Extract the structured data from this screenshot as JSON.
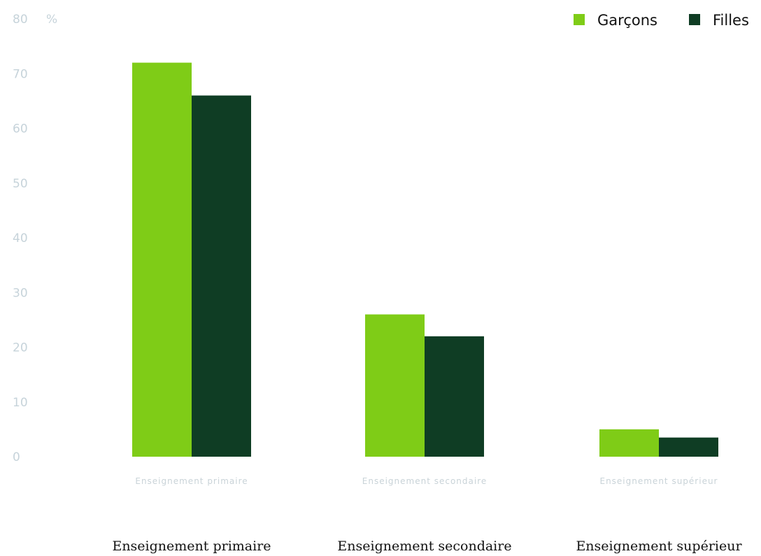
{
  "chart_data": {
    "type": "bar",
    "categories": [
      "Enseignement primaire",
      "Enseignement secondaire",
      "Enseignement supérieur"
    ],
    "series": [
      {
        "name": "Garçons",
        "values": [
          72,
          26,
          5
        ],
        "color": "#7fcc17"
      },
      {
        "name": "Filles",
        "values": [
          66,
          22,
          3.5
        ],
        "color": "#0f3d24"
      }
    ],
    "yunit": "%",
    "ylim": [
      0,
      80
    ],
    "yticks": [
      0,
      10,
      20,
      30,
      40,
      50,
      60,
      70,
      80
    ],
    "legend": "top-right",
    "grid": false,
    "title": "",
    "xlabel": "",
    "ylabel": ""
  }
}
